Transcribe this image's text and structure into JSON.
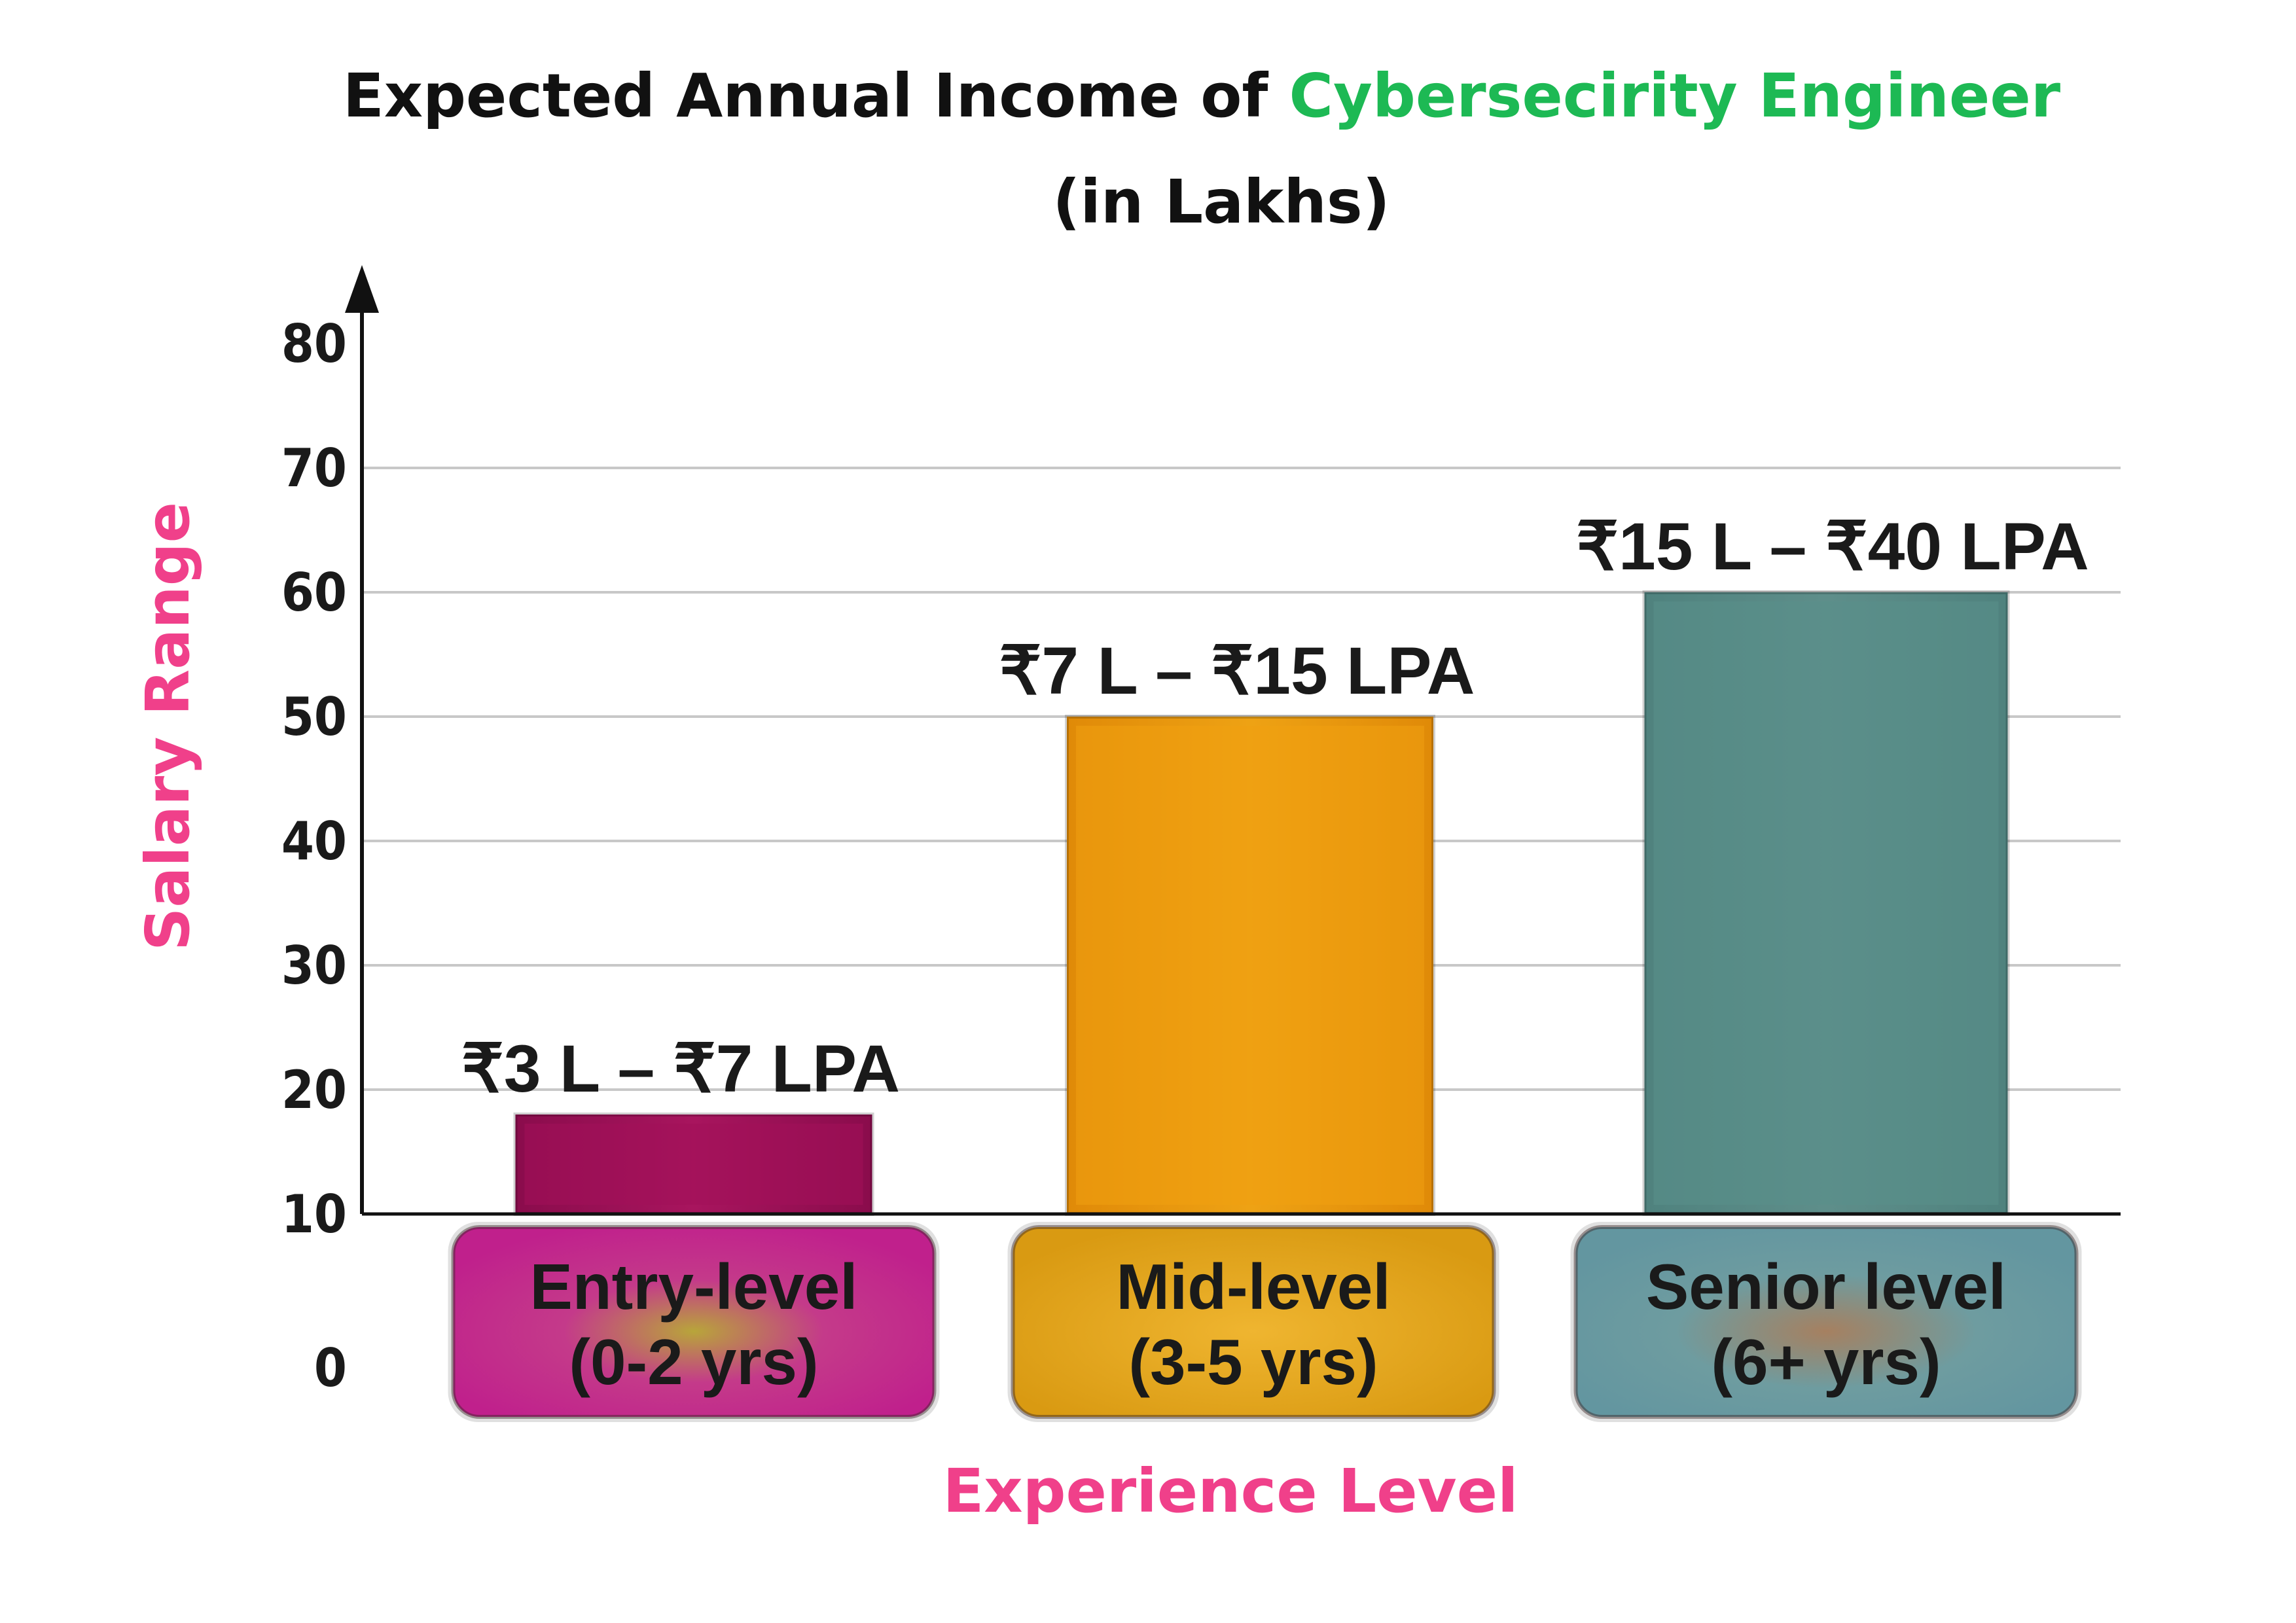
{
  "colors": {
    "title": "#111111",
    "title_highlight": "#1db954",
    "axis_label": "#f0408a",
    "grid": "#c8c8c8",
    "axis": "#111111",
    "bar_colors": [
      "#a3105a",
      "#f0a010",
      "#5a8f8a"
    ],
    "box_colors": [
      "#c42a8e",
      "#e6a818",
      "#6a9ea0"
    ]
  },
  "chart_data": {
    "type": "bar",
    "title_prefix": "Expected Annual Income of ",
    "title_highlight": "Cybersecirity Engineer",
    "title_line2": "(in Lakhs)",
    "xlabel": "Experience Level",
    "ylabel": "Salary Range",
    "ylim": [
      0,
      80
    ],
    "yticks": [
      "0",
      "10",
      "20",
      "30",
      "40",
      "50",
      "60",
      "70",
      "80"
    ],
    "grid": true,
    "categories": [
      {
        "line1": "Entry-level",
        "line2": "(0-2 yrs)"
      },
      {
        "line1": "Mid-level",
        "line2": "(3-5 yrs)"
      },
      {
        "line1": "Senior level",
        "line2": "(6+ yrs)"
      }
    ],
    "values": [
      18,
      50,
      60
    ],
    "data_labels": [
      "₹3 L – ₹7 LPA",
      "₹7 L – ₹15 LPA",
      "₹15 L – ₹40 LPA"
    ]
  }
}
